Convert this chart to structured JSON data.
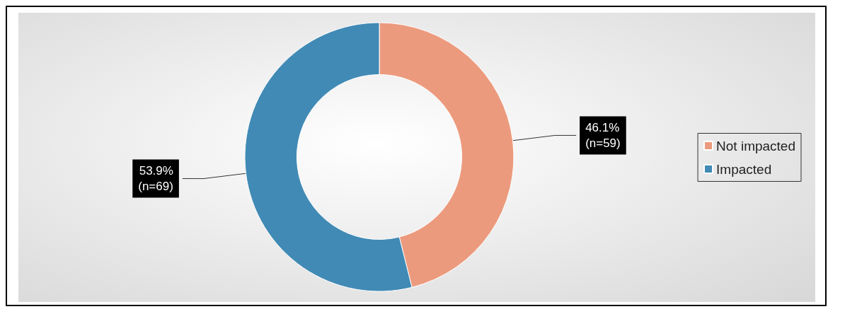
{
  "chart_data": {
    "type": "donut",
    "categories": [
      "Not impacted",
      "Impacted"
    ],
    "values": [
      46.1,
      53.9
    ],
    "colors": [
      "#ec9a7d",
      "#418ab5"
    ],
    "value_labels": [
      "46.1%\n(n=59)",
      "53.9%\n(n=69)"
    ],
    "legend": "right"
  }
}
